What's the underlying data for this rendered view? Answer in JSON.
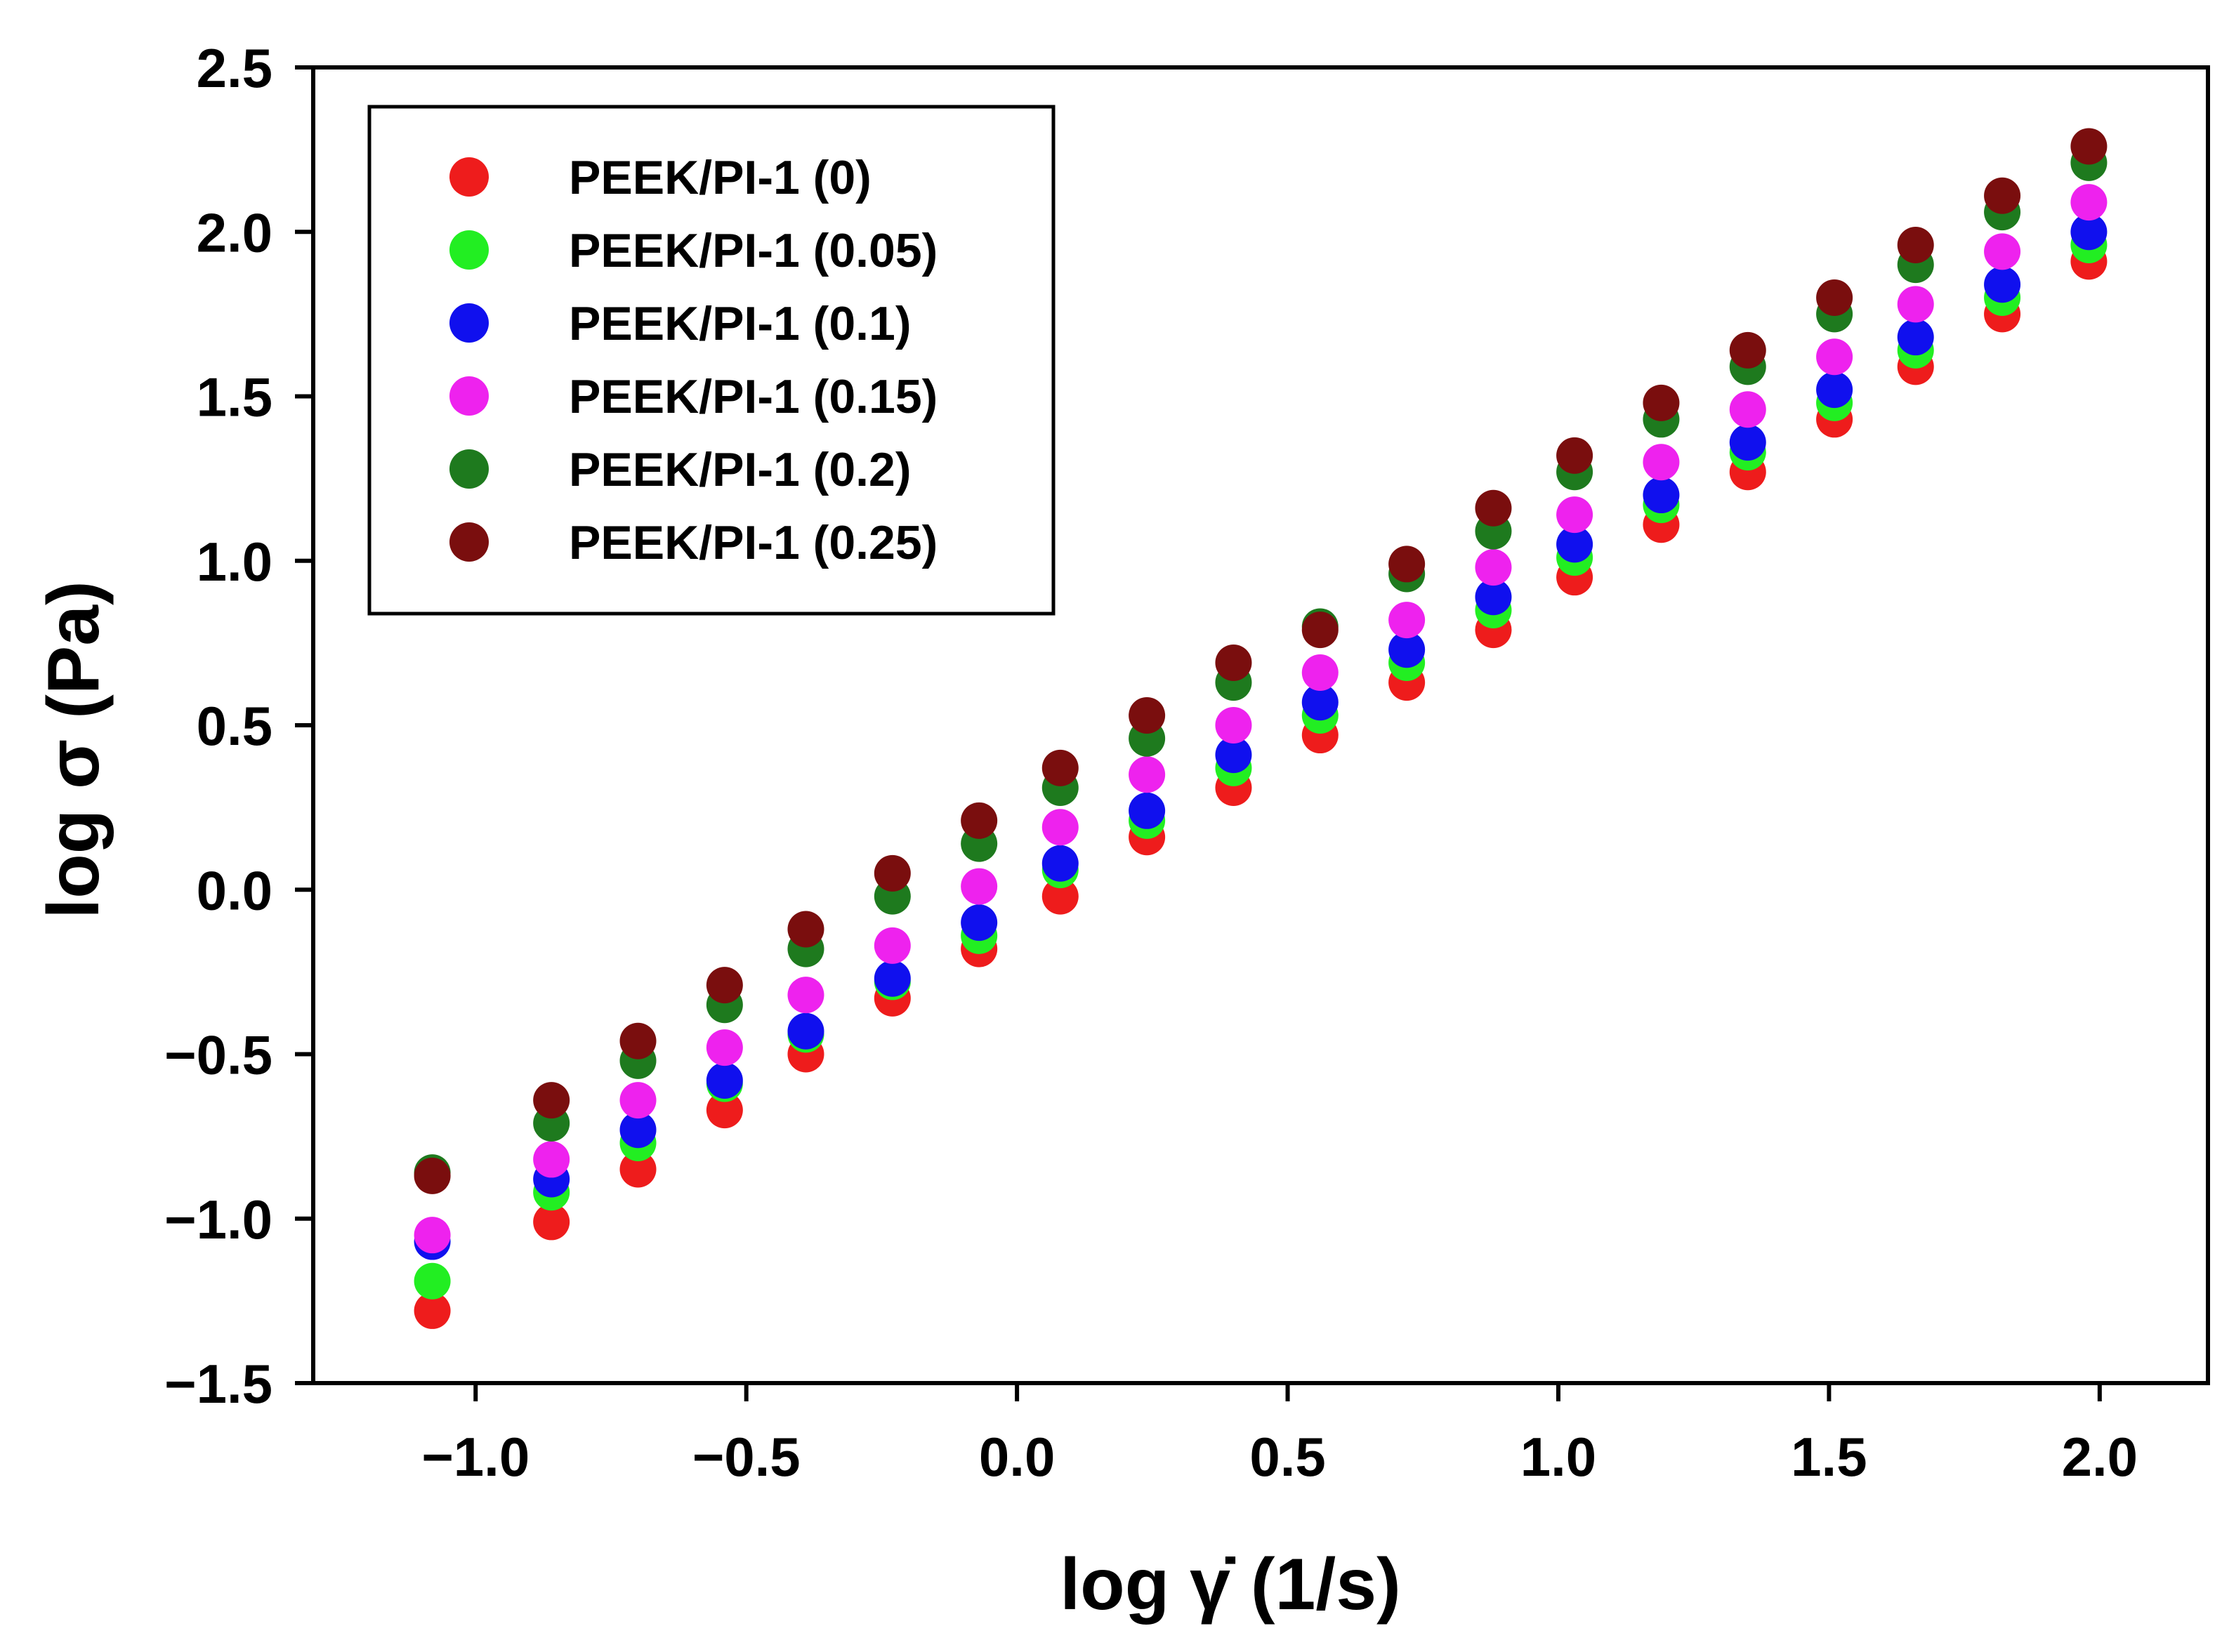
{
  "chart_data": {
    "type": "scatter",
    "title": "",
    "xlabel": "log γ̇ (1/s)",
    "ylabel": "log σ (Pa)",
    "xlim": [
      -1.3,
      2.2
    ],
    "ylim": [
      -1.5,
      2.5
    ],
    "xticks": [
      -1.0,
      -0.5,
      0.0,
      0.5,
      1.0,
      1.5,
      2.0
    ],
    "xtick_labels": [
      "−1.0",
      "−0.5",
      "0.0",
      "0.5",
      "1.0",
      "1.5",
      "2.0"
    ],
    "yticks": [
      -1.5,
      -1.0,
      -0.5,
      0.0,
      0.5,
      1.0,
      1.5,
      2.0,
      2.5
    ],
    "ytick_labels": [
      "−1.5",
      "−1.0",
      "−0.5",
      "0.0",
      "0.5",
      "1.0",
      "1.5",
      "2.0",
      "2.5"
    ],
    "grid": false,
    "legend_position": "top-left",
    "x": [
      -1.08,
      -0.86,
      -0.7,
      -0.54,
      -0.39,
      -0.23,
      -0.07,
      0.08,
      0.24,
      0.4,
      0.56,
      0.72,
      0.88,
      1.03,
      1.19,
      1.35,
      1.51,
      1.66,
      1.82,
      1.98
    ],
    "series": [
      {
        "name": "PEEK/PI-1 (0)",
        "color": "#ee1c1c",
        "values": [
          -1.28,
          -1.01,
          -0.85,
          -0.67,
          -0.5,
          -0.33,
          -0.18,
          -0.02,
          0.16,
          0.31,
          0.47,
          0.63,
          0.79,
          0.95,
          1.11,
          1.27,
          1.43,
          1.59,
          1.75,
          1.91
        ]
      },
      {
        "name": "PEEK/PI-1 (0.05)",
        "color": "#22ee22",
        "values": [
          -1.19,
          -0.92,
          -0.77,
          -0.59,
          -0.44,
          -0.28,
          -0.14,
          0.06,
          0.21,
          0.37,
          0.53,
          0.69,
          0.85,
          1.01,
          1.17,
          1.33,
          1.48,
          1.64,
          1.8,
          1.96
        ]
      },
      {
        "name": "PEEK/PI-1 (0.1)",
        "color": "#1010ee",
        "values": [
          -1.07,
          -0.88,
          -0.73,
          -0.58,
          -0.43,
          -0.27,
          -0.1,
          0.08,
          0.24,
          0.41,
          0.57,
          0.73,
          0.89,
          1.05,
          1.2,
          1.36,
          1.52,
          1.68,
          1.84,
          2.0
        ]
      },
      {
        "name": "PEEK/PI-1 (0.15)",
        "color": "#ee22ee",
        "values": [
          -1.05,
          -0.82,
          -0.64,
          -0.48,
          -0.32,
          -0.17,
          0.01,
          0.19,
          0.35,
          0.5,
          0.66,
          0.82,
          0.98,
          1.14,
          1.3,
          1.46,
          1.62,
          1.78,
          1.94,
          2.09
        ]
      },
      {
        "name": "PEEK/PI-1 (0.2)",
        "color": "#1e7a1e",
        "values": [
          -0.86,
          -0.71,
          -0.52,
          -0.35,
          -0.18,
          -0.02,
          0.14,
          0.31,
          0.46,
          0.63,
          0.8,
          0.96,
          1.09,
          1.27,
          1.43,
          1.59,
          1.75,
          1.9,
          2.06,
          2.21
        ]
      },
      {
        "name": "PEEK/PI-1 (0.25)",
        "color": "#7a0e0e",
        "values": [
          -0.87,
          -0.64,
          -0.46,
          -0.29,
          -0.12,
          0.05,
          0.21,
          0.37,
          0.53,
          0.69,
          0.79,
          0.99,
          1.16,
          1.32,
          1.48,
          1.64,
          1.8,
          1.96,
          2.11,
          2.26
        ]
      }
    ]
  }
}
